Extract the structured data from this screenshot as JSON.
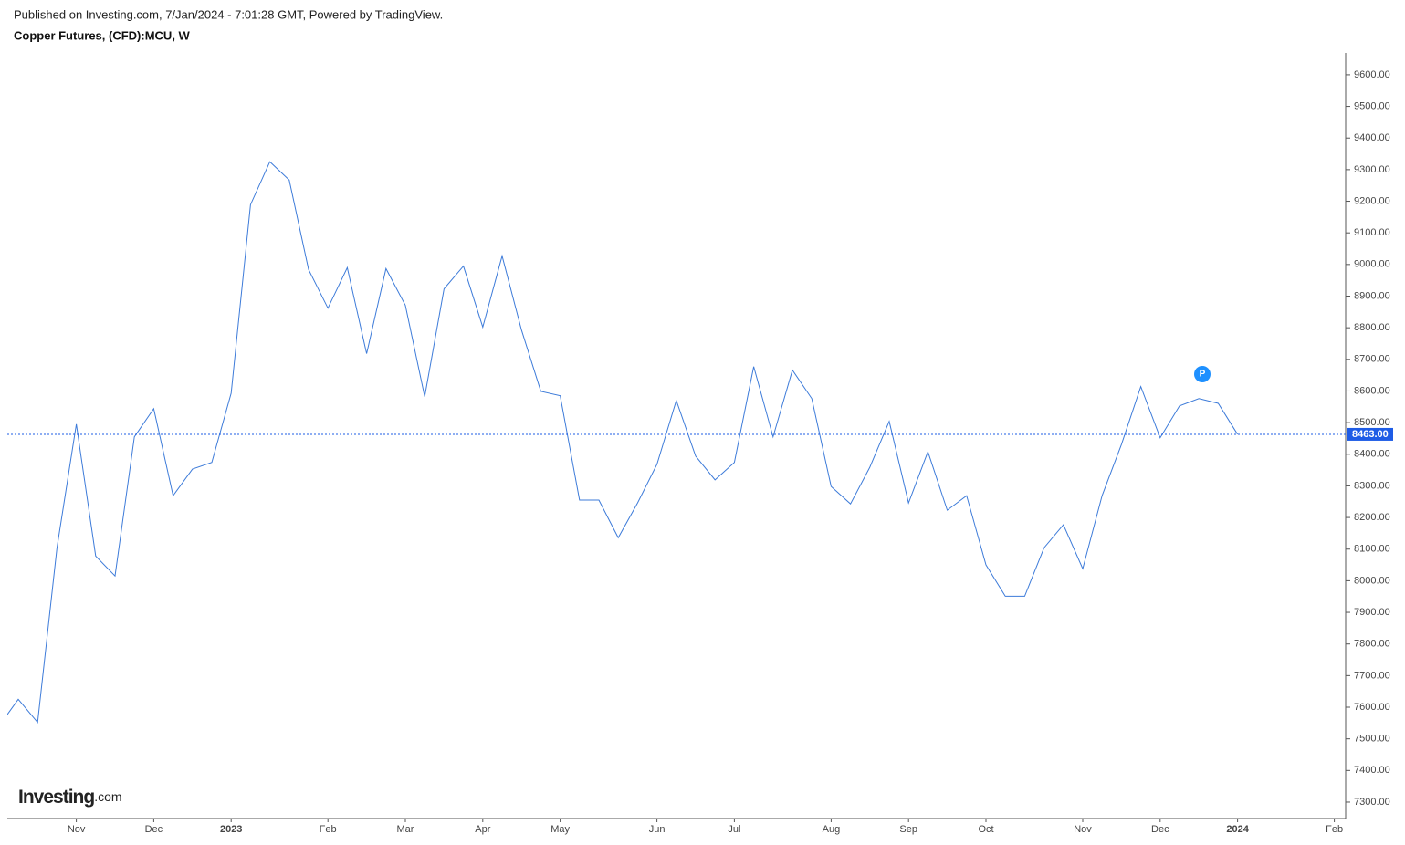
{
  "header": {
    "published": "Published on Investing.com, 7/Jan/2024 - 7:01:28 GMT, Powered by TradingView.",
    "logo": "Investing",
    "logo_suffix": ".com"
  },
  "chart_data": {
    "type": "line",
    "title": "Copper Futures, (CFD):MCU, W",
    "categories": [
      null,
      null,
      null,
      null,
      "Nov",
      null,
      null,
      null,
      "Dec",
      null,
      null,
      null,
      "2023",
      null,
      null,
      null,
      null,
      "Feb",
      null,
      null,
      null,
      "Mar",
      null,
      null,
      null,
      "Apr",
      null,
      null,
      null,
      "May",
      null,
      null,
      null,
      null,
      "Jun",
      null,
      null,
      null,
      "Jul",
      null,
      null,
      null,
      null,
      "Aug",
      null,
      null,
      null,
      "Sep",
      null,
      null,
      null,
      "Oct",
      null,
      null,
      null,
      null,
      "Nov",
      null,
      null,
      null,
      "Dec",
      null,
      null,
      null,
      "2024",
      null,
      null,
      null,
      null,
      "Feb"
    ],
    "series": [
      {
        "name": "MCU",
        "color": "#3d7bd9",
        "values": [
          7540,
          7625,
          7552,
          8104,
          8495,
          8078,
          8015,
          8455,
          8544,
          8269,
          8353,
          8374,
          8593,
          9189,
          9325,
          9267,
          8984,
          8862,
          8990,
          8718,
          8987,
          8871,
          8582,
          8923,
          8995,
          8802,
          9027,
          8793,
          8599,
          8585,
          8255,
          8255,
          8136,
          8246,
          8368,
          8570,
          8394,
          8319,
          8374,
          8677,
          8455,
          8666,
          8576,
          8298,
          8243,
          8359,
          8504,
          8246,
          8408,
          8223,
          8269,
          8050,
          7951,
          7951,
          8104,
          8177,
          8038,
          8269,
          8431,
          8614,
          8452,
          8553,
          8576,
          8561,
          8463,
          null,
          null,
          null,
          null,
          null
        ]
      }
    ],
    "ylim": [
      7248,
      9669
    ],
    "yticks": [
      {
        "value": 7300,
        "label": "7300.00"
      },
      {
        "value": 7400,
        "label": "7400.00"
      },
      {
        "value": 7500,
        "label": "7500.00"
      },
      {
        "value": 7600,
        "label": "7600.00"
      },
      {
        "value": 7700,
        "label": "7700.00"
      },
      {
        "value": 7800,
        "label": "7800.00"
      },
      {
        "value": 7900,
        "label": "7900.00"
      },
      {
        "value": 8000,
        "label": "8000.00"
      },
      {
        "value": 8100,
        "label": "8100.00"
      },
      {
        "value": 8200,
        "label": "8200.00"
      },
      {
        "value": 8300,
        "label": "8300.00"
      },
      {
        "value": 8400,
        "label": "8400.00"
      },
      {
        "value": 8500,
        "label": "8500.00"
      },
      {
        "value": 8600,
        "label": "8600.00"
      },
      {
        "value": 8700,
        "label": "8700.00"
      },
      {
        "value": 8800,
        "label": "8800.00"
      },
      {
        "value": 8900,
        "label": "8900.00"
      },
      {
        "value": 9000,
        "label": "9000.00"
      },
      {
        "value": 9100,
        "label": "9100.00"
      },
      {
        "value": 9200,
        "label": "9200.00"
      },
      {
        "value": 9300,
        "label": "9300.00"
      },
      {
        "value": 9400,
        "label": "9400.00"
      },
      {
        "value": 9500,
        "label": "9500.00"
      },
      {
        "value": 9600,
        "label": "9600.00"
      }
    ],
    "last_price": {
      "value": 8463,
      "label": "8463.00",
      "color": "#1e5ce6"
    },
    "marker_label": "P",
    "grid": false
  }
}
